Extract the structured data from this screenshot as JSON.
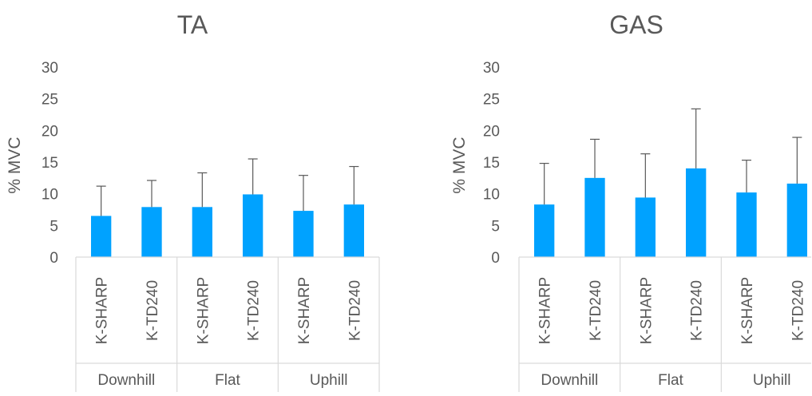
{
  "chart_data": [
    {
      "type": "bar",
      "title": "TA",
      "xlabel": "",
      "ylabel": "% MVC",
      "ylim": [
        0,
        30
      ],
      "yticks": [
        0,
        5,
        10,
        15,
        20,
        25,
        30
      ],
      "grid": false,
      "legend": "none",
      "bar_color": "#00A2FF",
      "groups": [
        {
          "label": "Downhill",
          "categories": [
            "K-SHARP",
            "K-TD240"
          ]
        },
        {
          "label": "Flat",
          "categories": [
            "K-SHARP",
            "K-TD240"
          ]
        },
        {
          "label": "Uphill",
          "categories": [
            "K-SHARP",
            "K-TD240"
          ]
        }
      ],
      "categories": [
        "K-SHARP",
        "K-TD240",
        "K-SHARP",
        "K-TD240",
        "K-SHARP",
        "K-TD240"
      ],
      "values": [
        6.5,
        7.9,
        7.9,
        9.9,
        7.3,
        8.3
      ],
      "error_upper": [
        11.2,
        12.1,
        13.3,
        15.5,
        12.9,
        14.3
      ]
    },
    {
      "type": "bar",
      "title": "GAS",
      "xlabel": "",
      "ylabel": "% MVC",
      "ylim": [
        0,
        30
      ],
      "yticks": [
        0,
        5,
        10,
        15,
        20,
        25,
        30
      ],
      "grid": false,
      "legend": "none",
      "bar_color": "#00A2FF",
      "groups": [
        {
          "label": "Downhill",
          "categories": [
            "K-SHARP",
            "K-TD240"
          ]
        },
        {
          "label": "Flat",
          "categories": [
            "K-SHARP",
            "K-TD240"
          ]
        },
        {
          "label": "Uphill",
          "categories": [
            "K-SHARP",
            "K-TD240"
          ]
        }
      ],
      "categories": [
        "K-SHARP",
        "K-TD240",
        "K-SHARP",
        "K-TD240",
        "K-SHARP",
        "K-TD240"
      ],
      "values": [
        8.3,
        12.5,
        9.4,
        14.0,
        10.2,
        11.6
      ],
      "error_upper": [
        14.8,
        18.6,
        16.3,
        23.4,
        15.3,
        18.9
      ]
    }
  ]
}
